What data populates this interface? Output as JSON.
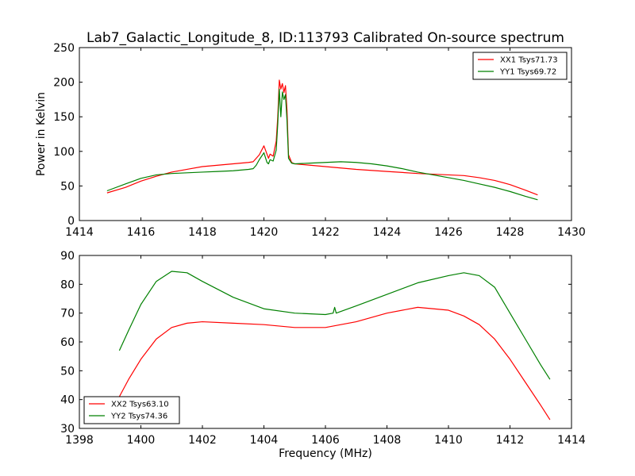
{
  "figure": {
    "title": "Lab7_Galactic_Longitude_8, ID:113793 Calibrated On-source spectrum"
  },
  "chart_data": [
    {
      "type": "line",
      "title": "Lab7_Galactic_Longitude_8, ID:113793 Calibrated On-source spectrum",
      "xlabel": "",
      "ylabel": "Power in Kelvin",
      "xlim": [
        1414,
        1430
      ],
      "ylim": [
        0,
        250
      ],
      "xticks": [
        1414,
        1416,
        1418,
        1420,
        1422,
        1424,
        1426,
        1428,
        1430
      ],
      "yticks": [
        0,
        50,
        100,
        150,
        200,
        250
      ],
      "grid": false,
      "legend": "top-right",
      "series": [
        {
          "name": "XX1 Tsys71.73",
          "color": "#ff0000",
          "x": [
            1414.9,
            1415.5,
            1416.0,
            1416.5,
            1417.0,
            1417.5,
            1418.0,
            1418.5,
            1419.0,
            1419.5,
            1419.65,
            1419.75,
            1419.85,
            1420.0,
            1420.1,
            1420.15,
            1420.2,
            1420.3,
            1420.4,
            1420.45,
            1420.5,
            1420.55,
            1420.6,
            1420.65,
            1420.7,
            1420.75,
            1420.8,
            1420.9,
            1421.0,
            1422.0,
            1423.0,
            1424.0,
            1425.0,
            1426.0,
            1426.5,
            1427.0,
            1427.5,
            1428.0,
            1428.5,
            1428.9
          ],
          "y": [
            40,
            48,
            57,
            64,
            70,
            74,
            78,
            80,
            82,
            84,
            85,
            90,
            95,
            108,
            96,
            90,
            96,
            93,
            115,
            150,
            203,
            190,
            198,
            185,
            195,
            160,
            95,
            84,
            82,
            78,
            74,
            71,
            68,
            66,
            65,
            62,
            58,
            52,
            44,
            37
          ]
        },
        {
          "name": "YY1 Tsys69.72",
          "color": "#008000",
          "x": [
            1414.9,
            1415.5,
            1416.0,
            1416.5,
            1417.0,
            1417.5,
            1418.0,
            1418.5,
            1419.0,
            1419.5,
            1419.65,
            1419.75,
            1419.85,
            1420.0,
            1420.1,
            1420.15,
            1420.2,
            1420.3,
            1420.4,
            1420.45,
            1420.5,
            1420.55,
            1420.6,
            1420.65,
            1420.7,
            1420.75,
            1420.8,
            1420.9,
            1421.0,
            1421.5,
            1422.0,
            1422.5,
            1423.0,
            1423.5,
            1424.0,
            1424.5,
            1425.0,
            1425.5,
            1426.0,
            1426.5,
            1427.0,
            1427.5,
            1428.0,
            1428.5,
            1428.9
          ],
          "y": [
            43,
            53,
            61,
            66,
            68,
            69,
            70,
            71,
            72,
            74,
            75,
            80,
            88,
            98,
            84,
            82,
            88,
            86,
            102,
            140,
            190,
            150,
            186,
            175,
            182,
            145,
            90,
            83,
            82,
            83,
            84,
            85,
            84,
            82,
            79,
            75,
            70,
            66,
            62,
            58,
            53,
            48,
            42,
            35,
            30
          ]
        }
      ]
    },
    {
      "type": "line",
      "title": "",
      "xlabel": "Frequency (MHz)",
      "ylabel": "",
      "xlim": [
        1398,
        1414
      ],
      "ylim": [
        30,
        90
      ],
      "xticks": [
        1398,
        1400,
        1402,
        1404,
        1406,
        1408,
        1410,
        1412,
        1414
      ],
      "yticks": [
        30,
        40,
        50,
        60,
        70,
        80,
        90
      ],
      "grid": false,
      "legend": "bottom-left",
      "series": [
        {
          "name": "XX2 Tsys63.10",
          "color": "#ff0000",
          "x": [
            1399.3,
            1399.6,
            1400.0,
            1400.5,
            1401.0,
            1401.5,
            1402.0,
            1403.0,
            1404.0,
            1405.0,
            1406.0,
            1407.0,
            1408.0,
            1409.0,
            1410.0,
            1410.5,
            1411.0,
            1411.5,
            1412.0,
            1412.5,
            1413.0,
            1413.3
          ],
          "y": [
            41,
            47,
            54,
            61,
            65,
            66.5,
            67,
            66.5,
            66,
            65,
            65,
            67,
            70,
            72,
            71,
            69,
            66,
            61,
            54,
            46,
            38,
            33
          ]
        },
        {
          "name": "YY2 Tsys74.36",
          "color": "#008000",
          "x": [
            1399.3,
            1399.6,
            1400.0,
            1400.5,
            1401.0,
            1401.5,
            1402.0,
            1403.0,
            1404.0,
            1405.0,
            1406.0,
            1406.25,
            1406.3,
            1406.35,
            1407.0,
            1408.0,
            1409.0,
            1410.0,
            1410.5,
            1411.0,
            1411.5,
            1412.0,
            1412.5,
            1413.0,
            1413.3
          ],
          "y": [
            57,
            64,
            73,
            81,
            84.5,
            84,
            81,
            75.5,
            71.5,
            70,
            69.5,
            70,
            72,
            70,
            72.5,
            76.5,
            80.5,
            83,
            84,
            83,
            79,
            70,
            61,
            52,
            47
          ]
        }
      ]
    }
  ]
}
